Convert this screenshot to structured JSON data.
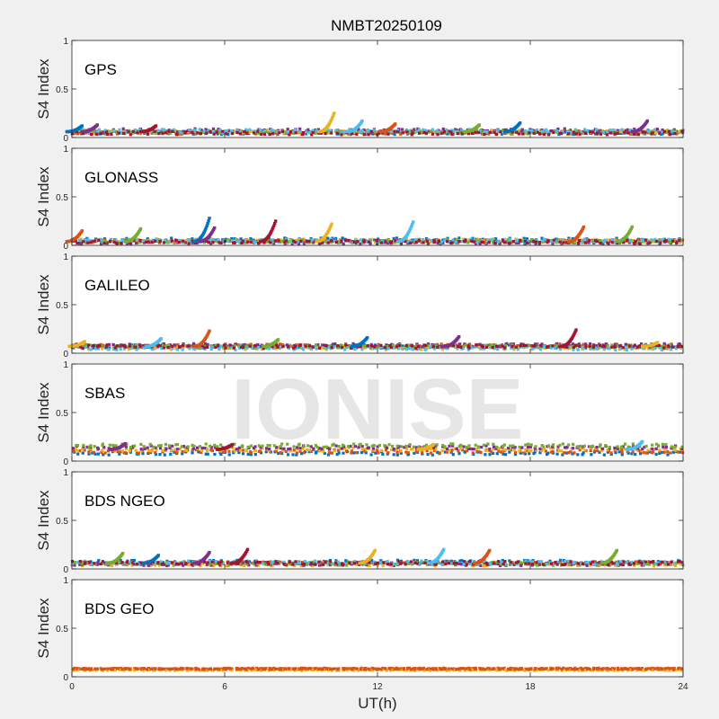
{
  "figure": {
    "title": "NMBT20250109",
    "watermark": "IONISE",
    "xlabel": "UT(h)",
    "xlim": [
      0,
      24
    ],
    "xticks": [
      0,
      6,
      12,
      18,
      24
    ],
    "background_color": "#f0f0f0",
    "axes_color": "#ffffff",
    "watermark_color": "#e6e6e6"
  },
  "palette": [
    "#0072BD",
    "#D95319",
    "#EDB120",
    "#7E2F8E",
    "#77AC30",
    "#4DBEEE",
    "#A2142F"
  ],
  "chart_data": [
    {
      "type": "scatter",
      "panel_label": "GPS",
      "ylabel": "S4 Index",
      "ylim": [
        0,
        1
      ],
      "yticks": [
        0,
        0.5,
        1
      ],
      "grid": false,
      "approx_baseline_s4": 0.06,
      "peaks": [
        {
          "t": 0.4,
          "s4": 0.12
        },
        {
          "t": 1.0,
          "s4": 0.13
        },
        {
          "t": 3.3,
          "s4": 0.12
        },
        {
          "t": 10.3,
          "s4": 0.25
        },
        {
          "t": 11.4,
          "s4": 0.17
        },
        {
          "t": 12.7,
          "s4": 0.14
        },
        {
          "t": 16.0,
          "s4": 0.13
        },
        {
          "t": 17.6,
          "s4": 0.15
        },
        {
          "t": 22.6,
          "s4": 0.17
        }
      ]
    },
    {
      "type": "scatter",
      "panel_label": "GLONASS",
      "ylabel": "S4 Index",
      "ylim": [
        0,
        1
      ],
      "yticks": [
        0,
        0.5,
        1
      ],
      "grid": false,
      "approx_baseline_s4": 0.04,
      "peaks": [
        {
          "t": 0.4,
          "s4": 0.15
        },
        {
          "t": 2.7,
          "s4": 0.17
        },
        {
          "t": 5.4,
          "s4": 0.28
        },
        {
          "t": 5.6,
          "s4": 0.18
        },
        {
          "t": 8.0,
          "s4": 0.25
        },
        {
          "t": 10.2,
          "s4": 0.22
        },
        {
          "t": 13.4,
          "s4": 0.24
        },
        {
          "t": 20.1,
          "s4": 0.19
        },
        {
          "t": 22.0,
          "s4": 0.19
        }
      ]
    },
    {
      "type": "scatter",
      "panel_label": "GALILEO",
      "ylabel": "S4 Index",
      "ylim": [
        0,
        1
      ],
      "yticks": [
        0,
        0.5,
        1
      ],
      "grid": false,
      "approx_baseline_s4": 0.07,
      "peaks": [
        {
          "t": 0.5,
          "s4": 0.12
        },
        {
          "t": 3.5,
          "s4": 0.15
        },
        {
          "t": 5.4,
          "s4": 0.23
        },
        {
          "t": 8.1,
          "s4": 0.14
        },
        {
          "t": 11.6,
          "s4": 0.16
        },
        {
          "t": 15.2,
          "s4": 0.17
        },
        {
          "t": 19.8,
          "s4": 0.24
        },
        {
          "t": 23.0,
          "s4": 0.11
        }
      ]
    },
    {
      "type": "scatter",
      "panel_label": "SBAS",
      "ylabel": "S4 Index",
      "ylim": [
        0,
        1
      ],
      "yticks": [
        0,
        0.5,
        1
      ],
      "grid": false,
      "approx_baseline_s4": 0.12,
      "peaks": [
        {
          "t": 2.1,
          "s4": 0.18
        },
        {
          "t": 6.3,
          "s4": 0.17
        },
        {
          "t": 14.2,
          "s4": 0.17
        },
        {
          "t": 22.4,
          "s4": 0.2
        }
      ]
    },
    {
      "type": "scatter",
      "panel_label": "BDS NGEO",
      "ylabel": "S4 Index",
      "ylim": [
        0,
        1
      ],
      "yticks": [
        0,
        0.5,
        1
      ],
      "grid": false,
      "approx_baseline_s4": 0.06,
      "peaks": [
        {
          "t": 2.0,
          "s4": 0.16
        },
        {
          "t": 3.4,
          "s4": 0.14
        },
        {
          "t": 5.4,
          "s4": 0.17
        },
        {
          "t": 6.9,
          "s4": 0.2
        },
        {
          "t": 11.9,
          "s4": 0.19
        },
        {
          "t": 14.6,
          "s4": 0.2
        },
        {
          "t": 16.4,
          "s4": 0.19
        },
        {
          "t": 21.4,
          "s4": 0.19
        }
      ]
    },
    {
      "type": "scatter",
      "panel_label": "BDS GEO",
      "ylabel": "S4 Index",
      "ylim": [
        0,
        1
      ],
      "yticks": [
        0,
        0.5,
        1
      ],
      "grid": false,
      "approx_baseline_s4": 0.08,
      "peaks": []
    }
  ]
}
